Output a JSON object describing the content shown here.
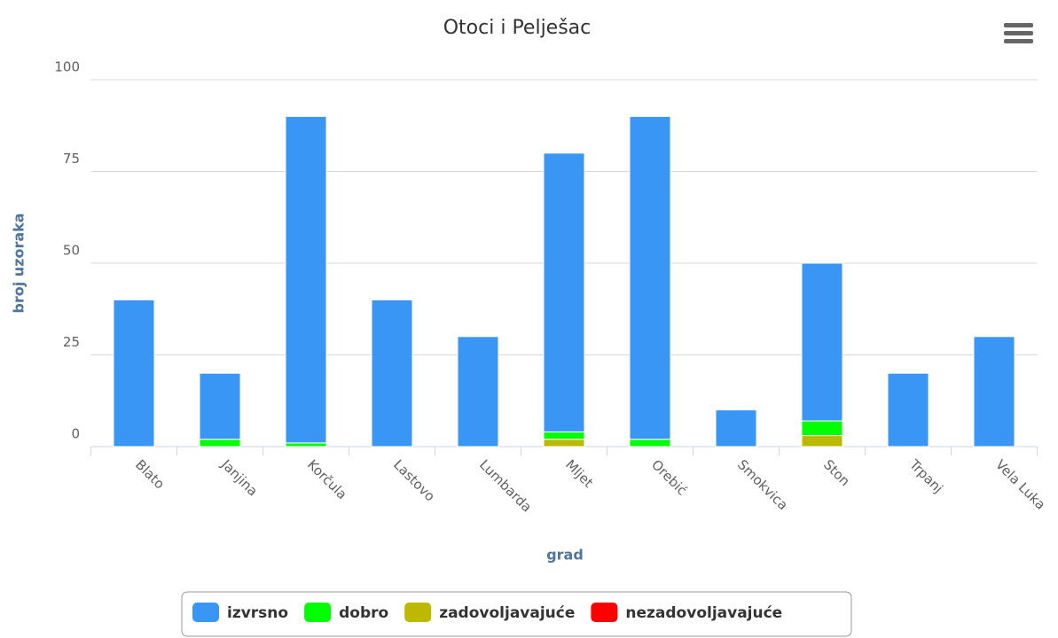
{
  "chart_data": {
    "type": "bar",
    "stacked": true,
    "title": "Otoci i Pelješac",
    "x_label": "grad",
    "y_label": "broj uzoraka",
    "categories": [
      "Blato",
      "Janjina",
      "Korčula",
      "Lastovo",
      "Lumbarda",
      "Mljet",
      "Orebić",
      "Smokvica",
      "Ston",
      "Trpanj",
      "Vela Luka"
    ],
    "series": [
      {
        "name": "izvrsno",
        "color": "#3a96f5",
        "values": [
          40,
          18,
          89,
          40,
          30,
          76,
          88,
          10,
          43,
          20,
          30
        ]
      },
      {
        "name": "dobro",
        "color": "#00ff00",
        "values": [
          0,
          2,
          1,
          0,
          0,
          2,
          2,
          0,
          4,
          0,
          0
        ]
      },
      {
        "name": "zadovoljavajuće",
        "color": "#bdb800",
        "values": [
          0,
          0,
          0,
          0,
          0,
          2,
          0,
          0,
          3,
          0,
          0
        ]
      },
      {
        "name": "nezadovoljavajuće",
        "color": "#ff0000",
        "values": [
          0,
          0,
          0,
          0,
          0,
          0,
          0,
          0,
          0,
          0,
          0
        ]
      }
    ],
    "ylim": [
      0,
      100
    ],
    "yticks": [
      0,
      25,
      50,
      75,
      100
    ],
    "grid": true,
    "legend": "bottom"
  }
}
